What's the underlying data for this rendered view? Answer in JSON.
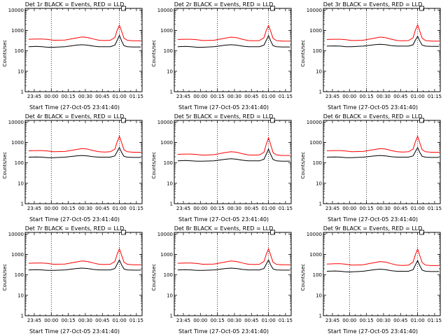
{
  "chart_data": {
    "type": "line",
    "layout": "3x3 grid",
    "xlabel": "Start Time (27-Oct-05 23:41:40)",
    "ylabel": "Counts/sec",
    "y_scale": "log",
    "ylim": [
      1,
      12000
    ],
    "y_ticks": [
      1,
      10,
      100,
      1000,
      10000
    ],
    "y_tick_labels": [
      "1",
      "10",
      "100",
      "1000",
      "10000"
    ],
    "xlim_minutes": [
      -5,
      98
    ],
    "x_ticks_minutes": [
      3,
      18,
      33,
      48,
      63,
      78,
      93
    ],
    "x_tick_labels": [
      "23:45",
      "00:00",
      "00:15",
      "00:30",
      "00:45",
      "01:00",
      "01:15"
    ],
    "colors": {
      "events": "#000000",
      "lld": "#ff0000",
      "axis": "#000000"
    },
    "series_names": [
      "Events",
      "LLD"
    ],
    "panels": [
      {
        "title": "Det 1r BLACK = Events, RED = LLD",
        "dotted_lines_minutes": [
          18,
          78
        ],
        "series": [
          {
            "name": "Events",
            "color": "#000000",
            "x": [
              -2,
              5,
              10,
              15,
              20,
              30,
              40,
              45,
              50,
              55,
              60,
              65,
              70,
              74,
              76,
              78,
              80,
              82,
              85,
              90,
              97
            ],
            "y": [
              160,
              165,
              160,
              150,
              150,
              160,
              190,
              200,
              190,
              170,
              160,
              160,
              160,
              190,
              320,
              580,
              300,
              180,
              160,
              155,
              155
            ]
          },
          {
            "name": "LLD",
            "color": "#ff0000",
            "x": [
              -2,
              5,
              10,
              15,
              20,
              30,
              40,
              45,
              50,
              55,
              60,
              65,
              70,
              74,
              76,
              78,
              80,
              82,
              85,
              90,
              97
            ],
            "y": [
              370,
              380,
              380,
              360,
              330,
              340,
              430,
              480,
              450,
              380,
              330,
              320,
              330,
              450,
              1000,
              1800,
              900,
              420,
              330,
              310,
              310
            ]
          }
        ]
      },
      {
        "title": "Det 2r BLACK = Events, RED = LLD",
        "dotted_lines_minutes": [
          33,
          78
        ],
        "series": [
          {
            "name": "Events",
            "color": "#000000",
            "x": [
              -2,
              5,
              10,
              15,
              20,
              30,
              40,
              45,
              50,
              55,
              60,
              65,
              70,
              74,
              76,
              78,
              80,
              82,
              85,
              90,
              97
            ],
            "y": [
              160,
              165,
              160,
              150,
              150,
              160,
              190,
              200,
              190,
              170,
              160,
              160,
              160,
              190,
              320,
              560,
              300,
              180,
              160,
              155,
              155
            ]
          },
          {
            "name": "LLD",
            "color": "#ff0000",
            "x": [
              -2,
              5,
              10,
              15,
              20,
              30,
              40,
              45,
              50,
              55,
              60,
              65,
              70,
              74,
              76,
              78,
              80,
              82,
              85,
              90,
              97
            ],
            "y": [
              360,
              370,
              370,
              350,
              320,
              330,
              420,
              470,
              440,
              370,
              320,
              310,
              320,
              440,
              980,
              1750,
              880,
              410,
              320,
              300,
              300
            ]
          }
        ]
      },
      {
        "title": "Det 3r BLACK = Events, RED = LLD",
        "dotted_lines_minutes": [
          33,
          78
        ],
        "series": [
          {
            "name": "Events",
            "color": "#000000",
            "x": [
              -2,
              5,
              10,
              15,
              20,
              30,
              40,
              45,
              50,
              55,
              60,
              65,
              70,
              74,
              76,
              78,
              80,
              82,
              85,
              90,
              97
            ],
            "y": [
              170,
              175,
              170,
              160,
              160,
              170,
              200,
              210,
              200,
              180,
              170,
              170,
              170,
              200,
              330,
              520,
              300,
              190,
              170,
              165,
              165
            ]
          },
          {
            "name": "LLD",
            "color": "#ff0000",
            "x": [
              -2,
              5,
              10,
              15,
              20,
              30,
              40,
              45,
              50,
              55,
              60,
              65,
              70,
              74,
              76,
              78,
              80,
              82,
              85,
              90,
              97
            ],
            "y": [
              360,
              370,
              370,
              350,
              320,
              330,
              420,
              470,
              440,
              370,
              320,
              310,
              320,
              440,
              1000,
              1900,
              900,
              420,
              320,
              300,
              300
            ]
          }
        ]
      },
      {
        "title": "Det 4r BLACK = Events, RED = LLD",
        "dotted_lines_minutes": [
          18,
          78
        ],
        "series": [
          {
            "name": "Events",
            "color": "#000000",
            "x": [
              -2,
              5,
              10,
              15,
              20,
              30,
              40,
              45,
              50,
              55,
              60,
              65,
              70,
              74,
              76,
              78,
              80,
              82,
              85,
              90,
              97
            ],
            "y": [
              190,
              195,
              190,
              180,
              180,
              190,
              220,
              230,
              220,
              200,
              190,
              190,
              190,
              220,
              350,
              560,
              320,
              210,
              190,
              185,
              185
            ]
          },
          {
            "name": "LLD",
            "color": "#ff0000",
            "x": [
              -2,
              5,
              10,
              15,
              20,
              30,
              40,
              45,
              50,
              55,
              60,
              65,
              70,
              74,
              76,
              78,
              80,
              82,
              85,
              90,
              97
            ],
            "y": [
              390,
              400,
              400,
              380,
              350,
              360,
              450,
              500,
              470,
              400,
              350,
              340,
              350,
              470,
              1050,
              2000,
              950,
              440,
              350,
              330,
              330
            ]
          }
        ]
      },
      {
        "title": "Det 5r BLACK = Events, RED = LLD",
        "dotted_lines_minutes": [
          33,
          78
        ],
        "series": [
          {
            "name": "Events",
            "color": "#000000",
            "x": [
              -2,
              5,
              10,
              15,
              20,
              30,
              40,
              45,
              50,
              55,
              60,
              65,
              70,
              74,
              76,
              78,
              80,
              82,
              85,
              90,
              97
            ],
            "y": [
              125,
              130,
              125,
              120,
              120,
              125,
              150,
              160,
              150,
              135,
              125,
              125,
              125,
              150,
              260,
              470,
              250,
              145,
              125,
              120,
              120
            ]
          },
          {
            "name": "LLD",
            "color": "#ff0000",
            "x": [
              -2,
              5,
              10,
              15,
              20,
              30,
              40,
              45,
              50,
              55,
              60,
              65,
              70,
              74,
              76,
              78,
              80,
              82,
              85,
              90,
              97
            ],
            "y": [
              260,
              270,
              270,
              255,
              240,
              250,
              320,
              350,
              330,
              280,
              245,
              240,
              245,
              330,
              800,
              1700,
              760,
              320,
              245,
              230,
              230
            ]
          }
        ]
      },
      {
        "title": "Det 6r BLACK = Events, RED = LLD",
        "dotted_lines_minutes": [
          33,
          78
        ],
        "series": [
          {
            "name": "Events",
            "color": "#000000",
            "x": [
              -2,
              5,
              10,
              15,
              20,
              30,
              40,
              45,
              50,
              55,
              60,
              65,
              70,
              74,
              76,
              78,
              80,
              82,
              85,
              90,
              97
            ],
            "y": [
              190,
              195,
              190,
              180,
              180,
              190,
              220,
              230,
              220,
              200,
              190,
              190,
              190,
              220,
              350,
              560,
              320,
              210,
              190,
              185,
              185
            ]
          },
          {
            "name": "LLD",
            "color": "#ff0000",
            "x": [
              -2,
              5,
              10,
              15,
              20,
              30,
              40,
              45,
              50,
              55,
              60,
              65,
              70,
              74,
              76,
              78,
              80,
              82,
              85,
              90,
              97
            ],
            "y": [
              390,
              400,
              400,
              380,
              350,
              360,
              450,
              500,
              470,
              400,
              350,
              340,
              350,
              470,
              1050,
              2000,
              950,
              440,
              350,
              330,
              330
            ]
          }
        ]
      },
      {
        "title": "Det 7r BLACK = Events, RED = LLD",
        "dotted_lines_minutes": [
          18,
          78
        ],
        "series": [
          {
            "name": "Events",
            "color": "#000000",
            "x": [
              -2,
              5,
              10,
              15,
              20,
              30,
              40,
              45,
              50,
              55,
              60,
              65,
              70,
              74,
              76,
              78,
              80,
              82,
              85,
              90,
              97
            ],
            "y": [
              175,
              180,
              175,
              165,
              165,
              175,
              205,
              215,
              205,
              185,
              175,
              175,
              175,
              205,
              330,
              540,
              300,
              195,
              175,
              170,
              170
            ]
          },
          {
            "name": "LLD",
            "color": "#ff0000",
            "x": [
              -2,
              5,
              10,
              15,
              20,
              30,
              40,
              45,
              50,
              55,
              60,
              65,
              70,
              74,
              76,
              78,
              80,
              82,
              85,
              90,
              97
            ],
            "y": [
              370,
              380,
              380,
              360,
              330,
              340,
              430,
              480,
              450,
              380,
              330,
              320,
              330,
              450,
              1000,
              1900,
              900,
              420,
              330,
              310,
              310
            ]
          }
        ]
      },
      {
        "title": "Det 8r BLACK = Events, RED = LLD",
        "dotted_lines_minutes": [
          33,
          78
        ],
        "series": [
          {
            "name": "Events",
            "color": "#000000",
            "x": [
              -2,
              5,
              10,
              15,
              20,
              30,
              40,
              45,
              50,
              55,
              60,
              65,
              70,
              74,
              76,
              78,
              80,
              82,
              85,
              90,
              97
            ],
            "y": [
              175,
              180,
              175,
              165,
              165,
              175,
              205,
              215,
              205,
              185,
              175,
              175,
              175,
              205,
              330,
              540,
              300,
              195,
              175,
              170,
              170
            ]
          },
          {
            "name": "LLD",
            "color": "#ff0000",
            "x": [
              -2,
              5,
              10,
              15,
              20,
              30,
              40,
              45,
              50,
              55,
              60,
              65,
              70,
              74,
              76,
              78,
              80,
              82,
              85,
              90,
              97
            ],
            "y": [
              370,
              380,
              380,
              360,
              330,
              340,
              430,
              480,
              450,
              380,
              330,
              320,
              330,
              450,
              1000,
              1900,
              900,
              420,
              330,
              310,
              310
            ]
          }
        ]
      },
      {
        "title": "Det 9r BLACK = Events, RED = LLD",
        "dotted_lines_minutes": [
          18,
          78
        ],
        "series": [
          {
            "name": "Events",
            "color": "#000000",
            "x": [
              -2,
              5,
              10,
              15,
              20,
              30,
              40,
              45,
              50,
              55,
              60,
              65,
              70,
              74,
              76,
              78,
              80,
              82,
              85,
              90,
              97
            ],
            "y": [
              150,
              155,
              150,
              140,
              140,
              150,
              180,
              190,
              180,
              160,
              150,
              150,
              150,
              180,
              300,
              500,
              280,
              170,
              150,
              145,
              145
            ]
          },
          {
            "name": "LLD",
            "color": "#ff0000",
            "x": [
              -2,
              5,
              10,
              15,
              20,
              30,
              40,
              45,
              50,
              55,
              60,
              65,
              70,
              74,
              76,
              78,
              80,
              82,
              85,
              90,
              97
            ],
            "y": [
              340,
              350,
              350,
              330,
              300,
              310,
              400,
              450,
              420,
              350,
              300,
              290,
              300,
              420,
              950,
              1850,
              860,
              400,
              300,
              285,
              285
            ]
          }
        ]
      }
    ]
  }
}
